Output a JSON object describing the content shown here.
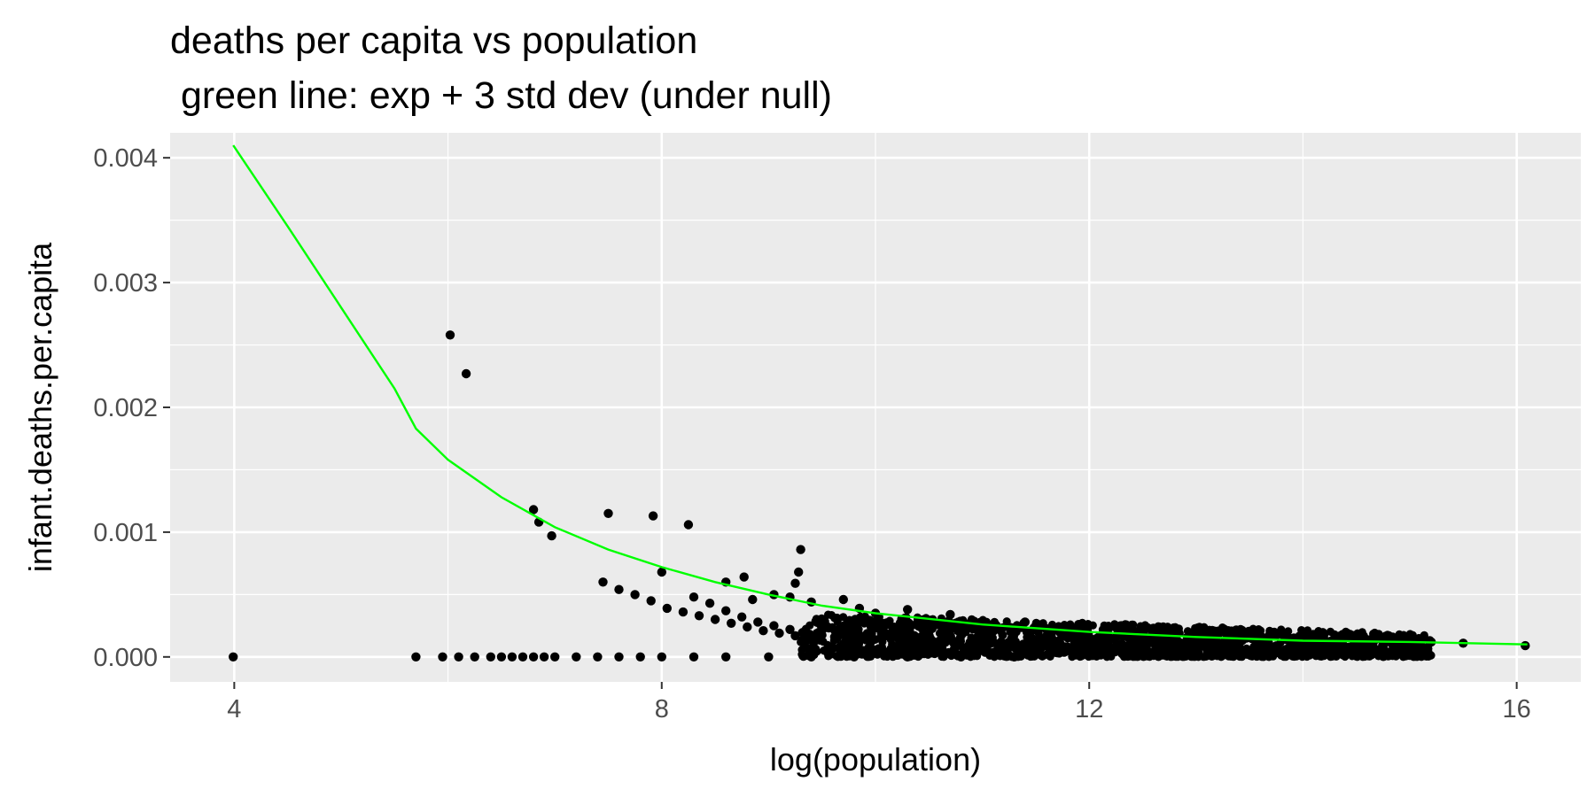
{
  "chart_data": {
    "type": "scatter",
    "title": "deaths per capita vs population",
    "subtitle": " green line: exp + 3 std dev (under null)",
    "xlabel": "log(population)",
    "ylabel": "infant.deaths.per.capita",
    "xlim": [
      3.4,
      16.6
    ],
    "ylim": [
      -0.0002,
      0.0042
    ],
    "x_ticks": [
      4,
      8,
      12,
      16
    ],
    "x_tick_labels": [
      "4",
      "8",
      "12",
      "16"
    ],
    "y_ticks": [
      0,
      0.001,
      0.002,
      0.003,
      0.004
    ],
    "y_tick_labels": [
      "0.000",
      "0.001",
      "0.002",
      "0.003",
      "0.004"
    ],
    "grid": true,
    "legend": "none",
    "colors": {
      "panel": "#ebebeb",
      "grid": "#ffffff",
      "points": "#000000",
      "line": "#00ff00",
      "tick_text": "#4d4d4d"
    },
    "series": [
      {
        "kind": "points",
        "points": [
          [
            3.99,
            0
          ],
          [
            5.7,
            0
          ],
          [
            5.95,
            0
          ],
          [
            6.1,
            0
          ],
          [
            6.25,
            0
          ],
          [
            6.4,
            0
          ],
          [
            6.5,
            0
          ],
          [
            6.6,
            0
          ],
          [
            6.7,
            0
          ],
          [
            6.8,
            0
          ],
          [
            6.9,
            0
          ],
          [
            7.0,
            0
          ],
          [
            7.2,
            0
          ],
          [
            7.4,
            0
          ],
          [
            7.6,
            0
          ],
          [
            7.8,
            0
          ],
          [
            8.0,
            0
          ],
          [
            8.3,
            0
          ],
          [
            8.6,
            0
          ],
          [
            9.0,
            0
          ],
          [
            9.4,
            0
          ],
          [
            9.8,
            0
          ],
          [
            10.3,
            0
          ],
          [
            10.8,
            0
          ],
          [
            11.3,
            0
          ],
          [
            6.02,
            0.00258
          ],
          [
            6.17,
            0.00227
          ],
          [
            6.8,
            0.00118
          ],
          [
            6.85,
            0.00108
          ],
          [
            6.97,
            0.00097
          ],
          [
            7.5,
            0.00115
          ],
          [
            7.92,
            0.00113
          ],
          [
            8.25,
            0.00106
          ],
          [
            8.0,
            0.00068
          ],
          [
            9.3,
            0.00086
          ],
          [
            7.45,
            0.0006
          ],
          [
            7.6,
            0.00054
          ],
          [
            7.75,
            0.0005
          ],
          [
            7.9,
            0.00045
          ],
          [
            8.05,
            0.00039
          ],
          [
            8.2,
            0.00036
          ],
          [
            8.35,
            0.00033
          ],
          [
            8.5,
            0.0003
          ],
          [
            8.65,
            0.00027
          ],
          [
            8.8,
            0.00024
          ],
          [
            8.95,
            0.00021
          ],
          [
            9.1,
            0.00019
          ],
          [
            9.25,
            0.00017
          ],
          [
            8.3,
            0.00048
          ],
          [
            8.45,
            0.00043
          ],
          [
            8.6,
            0.00037
          ],
          [
            8.75,
            0.00032
          ],
          [
            8.9,
            0.00028
          ],
          [
            9.05,
            0.00025
          ],
          [
            9.2,
            0.00022
          ],
          [
            8.6,
            0.0006
          ],
          [
            8.77,
            0.00064
          ],
          [
            8.85,
            0.00046
          ],
          [
            9.05,
            0.0005
          ],
          [
            9.25,
            0.00059
          ],
          [
            9.28,
            0.00068
          ],
          [
            9.2,
            0.00048
          ],
          [
            9.4,
            0.00044
          ],
          [
            9.7,
            0.00046
          ],
          [
            9.85,
            0.00039
          ],
          [
            10.0,
            0.00035
          ],
          [
            10.3,
            0.00038
          ],
          [
            10.7,
            0.00034
          ],
          [
            10.9,
            0.00029
          ],
          [
            11.4,
            0.00028
          ],
          [
            11.9,
            0.00026
          ],
          [
            12.3,
            0.00025
          ],
          [
            12.6,
            0.00023
          ],
          [
            13.3,
            0.00021
          ],
          [
            13.8,
            0.00019
          ],
          [
            14.3,
            0.00017
          ],
          [
            14.8,
            0.00015
          ],
          [
            15.2,
            0.00012
          ],
          [
            15.5,
            0.00011
          ],
          [
            16.08,
            9e-05
          ]
        ]
      },
      {
        "kind": "cloud",
        "count": 1800,
        "x_range": [
          9.3,
          15.2
        ],
        "y_floor": 0,
        "y_upper_at_x_start": 0.00035,
        "y_upper_at_x_end": 0.00018
      },
      {
        "name": "exp + 3 std dev",
        "kind": "line",
        "points": [
          [
            3.99,
            0.0041
          ],
          [
            4.5,
            0.00345
          ],
          [
            5.0,
            0.0028
          ],
          [
            5.5,
            0.00215
          ],
          [
            5.7,
            0.00183
          ],
          [
            6.0,
            0.00158
          ],
          [
            6.5,
            0.00128
          ],
          [
            7.0,
            0.00104
          ],
          [
            7.5,
            0.00086
          ],
          [
            8.0,
            0.00072
          ],
          [
            8.5,
            0.0006
          ],
          [
            9.0,
            0.0005
          ],
          [
            9.5,
            0.00041
          ],
          [
            10.0,
            0.00035
          ],
          [
            11.0,
            0.00026
          ],
          [
            12.0,
            0.0002
          ],
          [
            13.0,
            0.00016
          ],
          [
            14.0,
            0.00013
          ],
          [
            15.0,
            0.00012
          ],
          [
            16.1,
            0.0001
          ]
        ]
      }
    ]
  }
}
